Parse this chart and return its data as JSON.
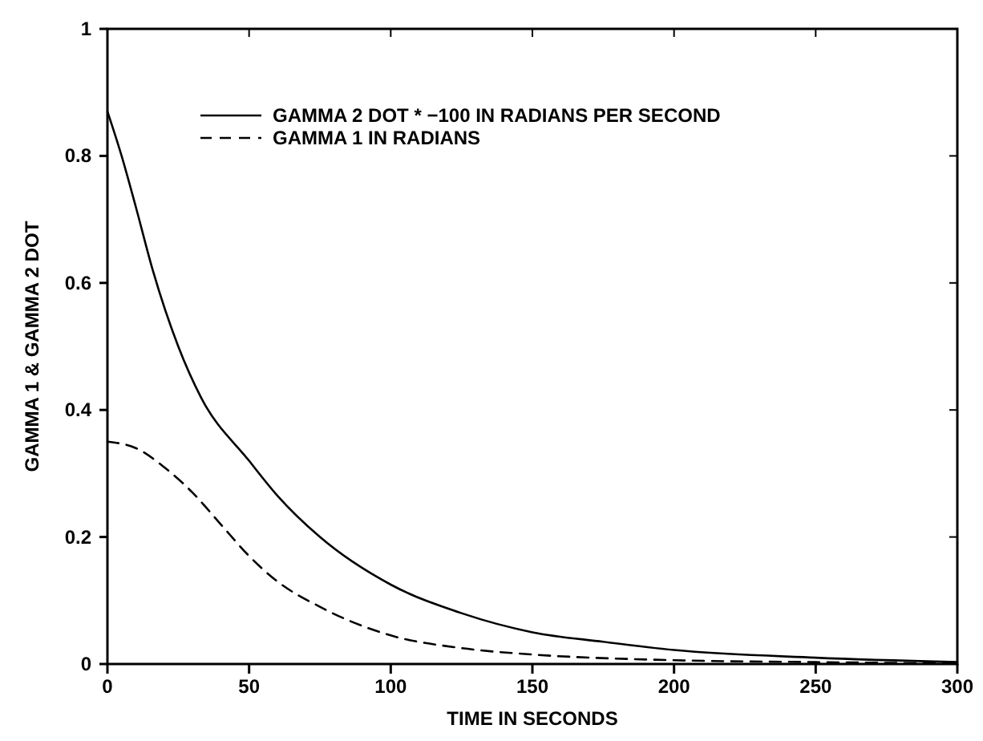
{
  "chart_data": {
    "type": "line",
    "xlabel": "TIME IN SECONDS",
    "ylabel": "GAMMA 1 & GAMMA 2 DOT",
    "xlim": [
      0,
      300
    ],
    "ylim": [
      0,
      1
    ],
    "xticks": [
      0,
      50,
      100,
      150,
      200,
      250,
      300
    ],
    "yticks": [
      0,
      0.2,
      0.4,
      0.6,
      0.8,
      1
    ],
    "grid": false,
    "legend": "top",
    "series": [
      {
        "name": "GAMMA 2 DOT * −100 IN RADIANS PER SECOND",
        "color": "#000000",
        "line_style": "solid",
        "x": [
          0,
          5,
          10,
          16,
          25,
          33,
          50,
          60,
          75,
          100,
          125,
          150,
          175,
          200,
          250,
          300
        ],
        "values": [
          0.87,
          0.8,
          0.72,
          0.62,
          0.5,
          0.42,
          0.32,
          0.265,
          0.2,
          0.125,
          0.08,
          0.05,
          0.035,
          0.022,
          0.01,
          0.003
        ]
      },
      {
        "name": "GAMMA 1 IN RADIANS",
        "color": "#000000",
        "line_style": "dashed",
        "x": [
          0,
          10,
          20,
          30,
          40,
          50,
          60,
          75,
          100,
          125,
          150,
          200,
          250,
          300
        ],
        "values": [
          0.35,
          0.34,
          0.31,
          0.27,
          0.22,
          0.17,
          0.13,
          0.09,
          0.045,
          0.025,
          0.015,
          0.006,
          0.003,
          0.001
        ]
      }
    ]
  }
}
